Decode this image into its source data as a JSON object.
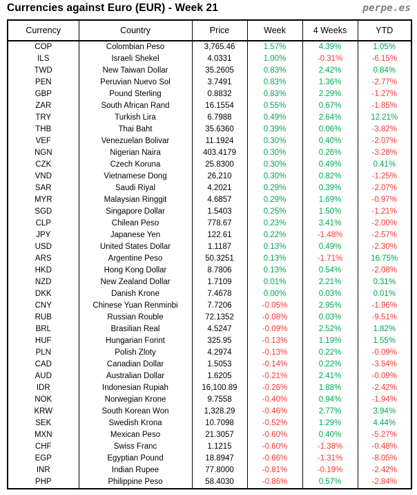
{
  "header": {
    "title": "Currencies against Euro (EUR) - Week 21",
    "logo": "perpe.es"
  },
  "colors": {
    "positive": "#00A651",
    "negative": "#FF3333",
    "logo_gray": "#808080",
    "border": "#000000",
    "text": "#000000"
  },
  "chart_data": {
    "type": "table",
    "title": "Currencies against Euro (EUR) - Week 21",
    "columns": [
      "Currency",
      "Country",
      "Price",
      "Week",
      "4 Weeks",
      "YTD"
    ],
    "rows": [
      [
        "COP",
        "Colombian Peso",
        "3,765.46",
        "1.57%",
        "4.39%",
        "1.05%"
      ],
      [
        "ILS",
        "Israeli Shekel",
        "4.0331",
        "1.00%",
        "-0.31%",
        "-6.15%"
      ],
      [
        "TWD",
        "New Taiwan Dollar",
        "35.2605",
        "0.83%",
        "2.42%",
        "0.84%"
      ],
      [
        "PEN",
        "Peruvian Nuevo Sol",
        "3.7491",
        "0.83%",
        "1.36%",
        "-2.77%"
      ],
      [
        "GBP",
        "Pound Sterling",
        "0.8832",
        "0.83%",
        "2.29%",
        "-1.27%"
      ],
      [
        "ZAR",
        "South African Rand",
        "16.1554",
        "0.55%",
        "0.67%",
        "-1.85%"
      ],
      [
        "TRY",
        "Turkish Lira",
        "6.7988",
        "0.49%",
        "2.64%",
        "12.21%"
      ],
      [
        "THB",
        "Thai Baht",
        "35.6360",
        "0.39%",
        "0.06%",
        "-3.82%"
      ],
      [
        "VEF",
        "Venezuelan Bolivar",
        "11.1924",
        "0.30%",
        "0.40%",
        "-2.07%"
      ],
      [
        "NGN",
        "Nigerian Naira",
        "403.4179",
        "0.30%",
        "0.26%",
        "-3.28%"
      ],
      [
        "CZK",
        "Czech Koruna",
        "25.8300",
        "0.30%",
        "0.49%",
        "0.41%"
      ],
      [
        "VND",
        "Vietnamese Dong",
        "26,210",
        "0.30%",
        "0.82%",
        "-1.25%"
      ],
      [
        "SAR",
        "Saudi Riyal",
        "4.2021",
        "0.29%",
        "0.39%",
        "-2.07%"
      ],
      [
        "MYR",
        "Malaysian Ringgit",
        "4.6857",
        "0.29%",
        "1.69%",
        "-0.97%"
      ],
      [
        "SGD",
        "Singapore Dollar",
        "1.5403",
        "0.25%",
        "1.50%",
        "-1.21%"
      ],
      [
        "CLP",
        "Chilean Peso",
        "778.67",
        "0.23%",
        "3.41%",
        "-2.00%"
      ],
      [
        "JPY",
        "Japanese Yen",
        "122.61",
        "0.22%",
        "-1.48%",
        "-2.57%"
      ],
      [
        "USD",
        "United States Dollar",
        "1.1187",
        "0.13%",
        "0.49%",
        "-2.30%"
      ],
      [
        "ARS",
        "Argentine Peso",
        "50.3251",
        "0.13%",
        "-1.71%",
        "16.75%"
      ],
      [
        "HKD",
        "Hong Kong Dollar",
        "8.7806",
        "0.13%",
        "0.54%",
        "-2.08%"
      ],
      [
        "NZD",
        "New Zealand Dollar",
        "1.7109",
        "0.01%",
        "2.21%",
        "0.31%"
      ],
      [
        "DKK",
        "Danish Krone",
        "7.4678",
        "0.00%",
        "0.03%",
        "0.01%"
      ],
      [
        "CNY",
        "Chinese Yuan Renminbi",
        "7.7206",
        "-0.05%",
        "2.95%",
        "-1.96%"
      ],
      [
        "RUB",
        "Russian Rouble",
        "72.1352",
        "-0.08%",
        "0.03%",
        "-9.51%"
      ],
      [
        "BRL",
        "Brasilian Real",
        "4.5247",
        "-0.09%",
        "2.52%",
        "1.82%"
      ],
      [
        "HUF",
        "Hungarian Forint",
        "325.95",
        "-0.13%",
        "1.19%",
        "1.55%"
      ],
      [
        "PLN",
        "Polish Zloty",
        "4.2974",
        "-0.13%",
        "0.22%",
        "-0.09%"
      ],
      [
        "CAD",
        "Canadian Dollar",
        "1.5053",
        "-0.14%",
        "0.22%",
        "-3.54%"
      ],
      [
        "AUD",
        "Australian Dollar",
        "1.6205",
        "-0.21%",
        "2.41%",
        "-0.09%"
      ],
      [
        "IDR",
        "Indonesian Rupiah",
        "16,100.89",
        "-0.26%",
        "1.88%",
        "-2.42%"
      ],
      [
        "NOK",
        "Norwegian Krone",
        "9.7558",
        "-0.40%",
        "0.94%",
        "-1.94%"
      ],
      [
        "KRW",
        "South Korean Won",
        "1,328.29",
        "-0.46%",
        "2.77%",
        "3.94%"
      ],
      [
        "SEK",
        "Swedish Krona",
        "10.7098",
        "-0.52%",
        "1.29%",
        "4.44%"
      ],
      [
        "MXN",
        "Mexican Peso",
        "21.3057",
        "-0.60%",
        "0.40%",
        "-5.27%"
      ],
      [
        "CHF",
        "Swiss Franc",
        "1.1215",
        "-0.60%",
        "-1.38%",
        "-0.48%"
      ],
      [
        "EGP",
        "Egyptian Pound",
        "18.8947",
        "-0.66%",
        "-1.31%",
        "-8.05%"
      ],
      [
        "INR",
        "Indian Rupee",
        "77.8000",
        "-0.81%",
        "-0.19%",
        "-2.42%"
      ],
      [
        "PHP",
        "Philippine Peso",
        "58.4030",
        "-0.86%",
        "0.57%",
        "-2.84%"
      ]
    ]
  }
}
